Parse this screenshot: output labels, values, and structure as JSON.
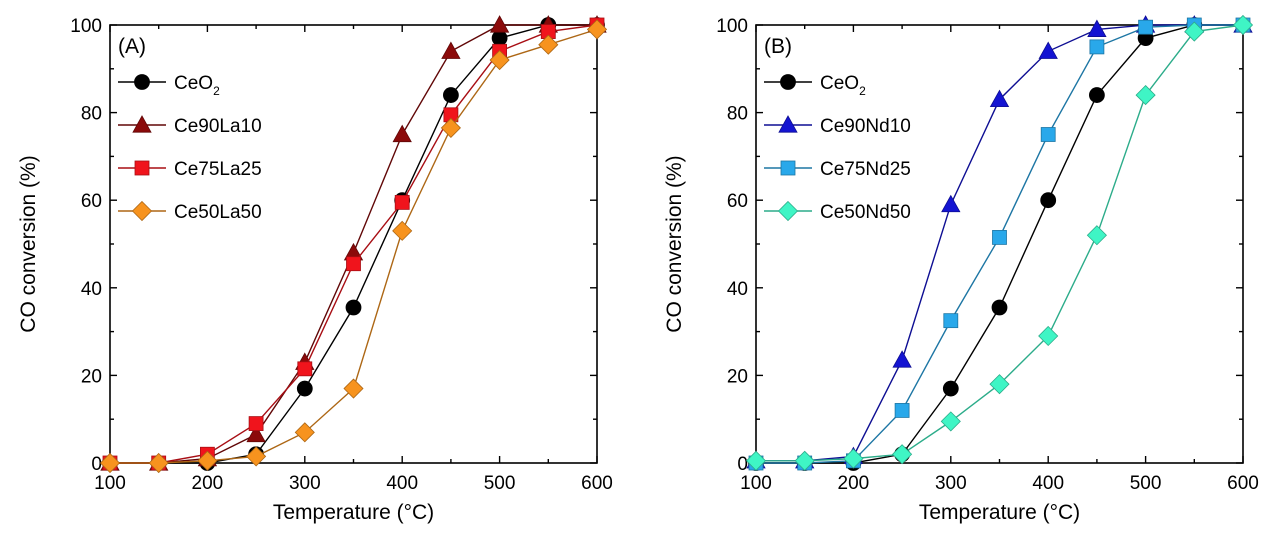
{
  "chart_data": [
    {
      "type": "line",
      "panel_label": "(A)",
      "xlabel": "Temperature (°C)",
      "ylabel": "CO conversion (%)",
      "xlim": [
        100,
        600
      ],
      "ylim": [
        0,
        100
      ],
      "xticks": [
        100,
        200,
        300,
        400,
        500,
        600
      ],
      "yticks": [
        0,
        20,
        40,
        60,
        80,
        100
      ],
      "grid": false,
      "legend_position": "top-left",
      "series": [
        {
          "name": "CeO",
          "name_sub": "2",
          "color": "#000000",
          "marker": "circle",
          "x": [
            100,
            150,
            200,
            250,
            300,
            350,
            400,
            450,
            500,
            550,
            600
          ],
          "y": [
            0,
            0,
            0,
            2,
            17,
            35.5,
            60,
            84,
            97,
            100,
            100
          ]
        },
        {
          "name": "Ce90La10",
          "color": "#8b0a0a",
          "marker": "triangle",
          "x": [
            100,
            150,
            200,
            250,
            300,
            350,
            400,
            450,
            500,
            550,
            600
          ],
          "y": [
            0,
            0,
            1,
            6.5,
            23,
            48,
            75,
            94,
            100,
            100,
            100
          ]
        },
        {
          "name": "Ce75La25",
          "color": "#f0141c",
          "marker": "square",
          "x": [
            100,
            150,
            200,
            250,
            300,
            350,
            400,
            450,
            500,
            550,
            600
          ],
          "y": [
            0,
            0,
            2,
            9,
            21.5,
            45.5,
            59.5,
            79.5,
            94,
            98.5,
            100
          ]
        },
        {
          "name": "Ce50La50",
          "color": "#f7931e",
          "marker": "diamond",
          "x": [
            100,
            150,
            200,
            250,
            300,
            350,
            400,
            450,
            500,
            550,
            600
          ],
          "y": [
            0,
            0,
            0.5,
            1.5,
            7,
            17,
            53,
            76.5,
            92,
            95.5,
            99
          ]
        }
      ]
    },
    {
      "type": "line",
      "panel_label": "(B)",
      "xlabel": "Temperature (°C)",
      "ylabel": "CO conversion (%)",
      "xlim": [
        100,
        600
      ],
      "ylim": [
        0,
        100
      ],
      "xticks": [
        100,
        200,
        300,
        400,
        500,
        600
      ],
      "yticks": [
        0,
        20,
        40,
        60,
        80,
        100
      ],
      "grid": false,
      "legend_position": "top-left",
      "series": [
        {
          "name": "CeO",
          "name_sub": "2",
          "color": "#000000",
          "marker": "circle",
          "x": [
            100,
            150,
            200,
            250,
            300,
            350,
            400,
            450,
            500,
            550,
            600
          ],
          "y": [
            0,
            0,
            0,
            2,
            17,
            35.5,
            60,
            84,
            97,
            100,
            100
          ]
        },
        {
          "name": "Ce90Nd10",
          "color": "#1414d2",
          "marker": "triangle",
          "x": [
            100,
            150,
            200,
            250,
            300,
            350,
            400,
            450,
            500,
            550,
            600
          ],
          "y": [
            0.5,
            0.5,
            1.5,
            23.5,
            59,
            83,
            94,
            99,
            100,
            100,
            100
          ]
        },
        {
          "name": "Ce75Nd25",
          "color": "#29a8ea",
          "marker": "square",
          "x": [
            100,
            150,
            200,
            250,
            300,
            350,
            400,
            450,
            500,
            550,
            600
          ],
          "y": [
            0,
            0,
            0.5,
            12,
            32.5,
            51.5,
            75,
            95,
            99.5,
            100,
            100
          ]
        },
        {
          "name": "Ce50Nd50",
          "color": "#3ff5c5",
          "marker": "diamond",
          "x": [
            100,
            150,
            200,
            250,
            300,
            350,
            400,
            450,
            500,
            550,
            600
          ],
          "y": [
            0.5,
            0.5,
            1,
            2,
            9.5,
            18,
            29,
            52,
            84,
            98.5,
            100
          ]
        }
      ]
    }
  ]
}
